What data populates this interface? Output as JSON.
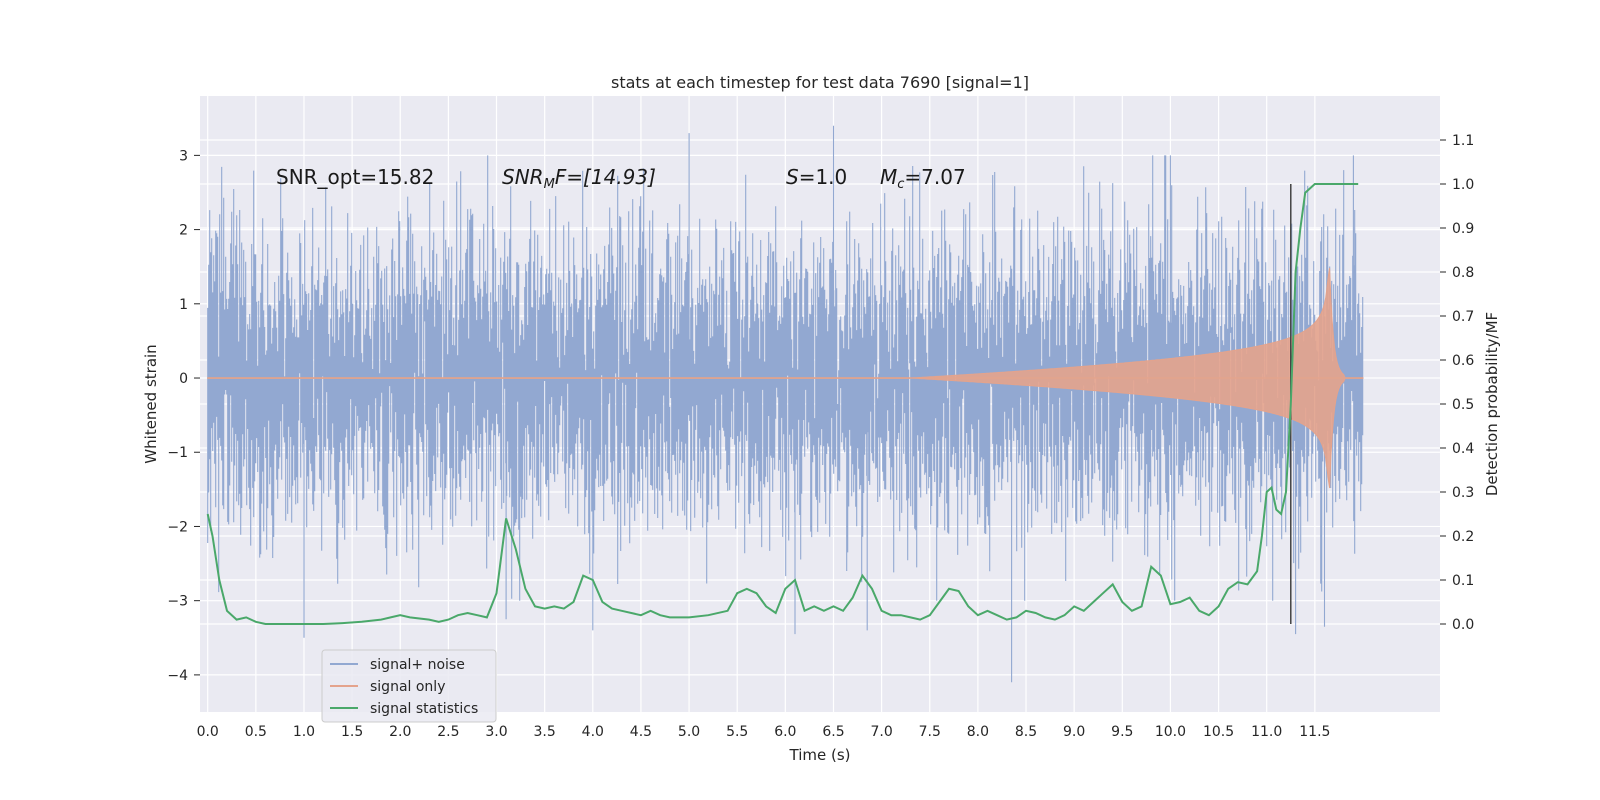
{
  "chart_data": {
    "type": "line",
    "title": "stats at each timestep for test data 7690 [signal=1]",
    "xlabel": "Time (s)",
    "ylabel": "Whitened strain",
    "y2label": "Detection probability/MF",
    "xlim": [
      -0.08,
      12.8
    ],
    "ylim": [
      -4.5,
      3.8
    ],
    "y2lim": [
      -0.2,
      1.2
    ],
    "x_ticks": [
      "0.0",
      "0.5",
      "1.0",
      "1.5",
      "2.0",
      "2.5",
      "3.0",
      "3.5",
      "4.0",
      "4.5",
      "5.0",
      "5.5",
      "6.0",
      "6.5",
      "7.0",
      "7.5",
      "8.0",
      "8.5",
      "9.0",
      "9.5",
      "10.0",
      "10.5",
      "11.0",
      "11.5"
    ],
    "y_ticks": [
      "−4",
      "−3",
      "−2",
      "−1",
      "0",
      "1",
      "2",
      "3"
    ],
    "y2_ticks": [
      "0.0",
      "0.1",
      "0.2",
      "0.3",
      "0.4",
      "0.5",
      "0.6",
      "0.7",
      "0.8",
      "0.9",
      "1.0",
      "1.1"
    ],
    "grid": true,
    "legend_position": "lower-left",
    "annotations": {
      "snr_opt": "SNR_opt=15.82",
      "snr_mf_main": "SNR",
      "snr_mf_sub": "M",
      "snr_mf_rest": "F=[14.93]",
      "s_main": "S",
      "s_rest": "=1.0",
      "mc_main": "M",
      "mc_sub": "c",
      "mc_rest": "=7.07"
    },
    "vertical_line_x": 11.25,
    "series": [
      {
        "name": "signal+ noise",
        "color": "#92a8d1",
        "axis": "left",
        "x_range": [
          0.0,
          12.0
        ],
        "envelope_std": 0.95,
        "spikes": [
          [
            0.0,
            -1.8
          ],
          [
            1.0,
            -3.5
          ],
          [
            3.1,
            -3.25
          ],
          [
            4.0,
            -3.4
          ],
          [
            5.0,
            3.3
          ],
          [
            6.1,
            -3.45
          ],
          [
            6.5,
            3.4
          ],
          [
            6.85,
            -3.4
          ],
          [
            8.35,
            -4.1
          ],
          [
            10.0,
            3.0
          ],
          [
            11.3,
            -3.45
          ],
          [
            11.6,
            -3.35
          ],
          [
            11.9,
            3.0
          ]
        ]
      },
      {
        "name": "signal only",
        "color": "#e4a38c",
        "axis": "left",
        "x_range": [
          0.0,
          12.0
        ],
        "chirp": {
          "start": 7.3,
          "peak_time": 11.65,
          "peak_amplitude": 1.6,
          "ringdown_end": 11.8
        }
      },
      {
        "name": "signal statistics",
        "color": "#4aa86a",
        "axis": "right",
        "x": [
          0.0,
          0.05,
          0.12,
          0.2,
          0.3,
          0.4,
          0.5,
          0.6,
          0.8,
          1.0,
          1.2,
          1.4,
          1.6,
          1.8,
          1.9,
          2.0,
          2.1,
          2.3,
          2.4,
          2.5,
          2.6,
          2.7,
          2.8,
          2.9,
          3.0,
          3.1,
          3.2,
          3.3,
          3.4,
          3.5,
          3.6,
          3.7,
          3.8,
          3.9,
          4.0,
          4.1,
          4.2,
          4.3,
          4.5,
          4.6,
          4.7,
          4.8,
          4.9,
          5.0,
          5.2,
          5.4,
          5.5,
          5.6,
          5.7,
          5.8,
          5.9,
          6.0,
          6.1,
          6.2,
          6.3,
          6.4,
          6.5,
          6.6,
          6.7,
          6.8,
          6.9,
          7.0,
          7.1,
          7.2,
          7.3,
          7.4,
          7.5,
          7.6,
          7.7,
          7.8,
          7.9,
          8.0,
          8.1,
          8.2,
          8.3,
          8.4,
          8.5,
          8.6,
          8.7,
          8.8,
          8.9,
          9.0,
          9.1,
          9.2,
          9.3,
          9.4,
          9.5,
          9.6,
          9.7,
          9.8,
          9.9,
          10.0,
          10.1,
          10.2,
          10.3,
          10.4,
          10.5,
          10.6,
          10.7,
          10.8,
          10.9,
          10.95,
          11.0,
          11.05,
          11.1,
          11.15,
          11.2,
          11.25,
          11.3,
          11.35,
          11.4,
          11.5,
          11.6,
          11.7,
          11.8,
          11.9,
          11.95
        ],
        "y": [
          0.25,
          0.2,
          0.1,
          0.03,
          0.01,
          0.015,
          0.005,
          0.0,
          0.0,
          0.0,
          0.0,
          0.002,
          0.005,
          0.01,
          0.015,
          0.02,
          0.015,
          0.01,
          0.005,
          0.01,
          0.02,
          0.025,
          0.02,
          0.015,
          0.07,
          0.24,
          0.17,
          0.08,
          0.04,
          0.035,
          0.04,
          0.035,
          0.05,
          0.11,
          0.1,
          0.05,
          0.035,
          0.03,
          0.02,
          0.03,
          0.02,
          0.015,
          0.015,
          0.015,
          0.02,
          0.03,
          0.07,
          0.08,
          0.07,
          0.04,
          0.025,
          0.08,
          0.1,
          0.03,
          0.04,
          0.03,
          0.04,
          0.03,
          0.06,
          0.11,
          0.08,
          0.03,
          0.02,
          0.02,
          0.015,
          0.01,
          0.02,
          0.05,
          0.08,
          0.075,
          0.04,
          0.02,
          0.03,
          0.02,
          0.01,
          0.015,
          0.03,
          0.025,
          0.015,
          0.01,
          0.02,
          0.04,
          0.03,
          0.05,
          0.07,
          0.09,
          0.05,
          0.03,
          0.04,
          0.13,
          0.11,
          0.045,
          0.05,
          0.06,
          0.03,
          0.02,
          0.04,
          0.08,
          0.095,
          0.09,
          0.12,
          0.2,
          0.3,
          0.31,
          0.26,
          0.25,
          0.3,
          0.5,
          0.8,
          0.9,
          0.98,
          1.0,
          1.0,
          1.0,
          1.0,
          1.0,
          1.0
        ]
      }
    ]
  }
}
